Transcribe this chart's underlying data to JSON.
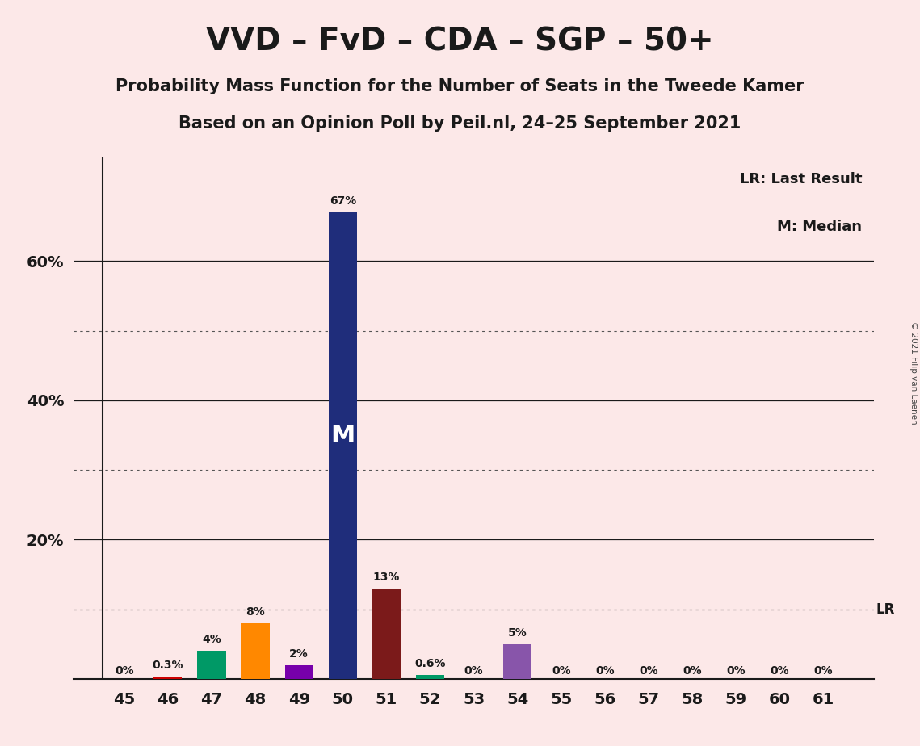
{
  "title": "VVD – FvD – CDA – SGP – 50+",
  "subtitle1": "Probability Mass Function for the Number of Seats in the Tweede Kamer",
  "subtitle2": "Based on an Opinion Poll by Peil.nl, 24–25 September 2021",
  "copyright": "© 2021 Filip van Laenen",
  "legend_lr": "LR: Last Result",
  "legend_m": "M: Median",
  "median_label": "M",
  "x_labels": [
    45,
    46,
    47,
    48,
    49,
    50,
    51,
    52,
    53,
    54,
    55,
    56,
    57,
    58,
    59,
    60,
    61
  ],
  "values": [
    0.0,
    0.3,
    4.0,
    8.0,
    2.0,
    67.0,
    13.0,
    0.6,
    0.0,
    5.0,
    0.0,
    0.0,
    0.0,
    0.0,
    0.0,
    0.0,
    0.0
  ],
  "bar_colors": [
    "#cc0000",
    "#cc0000",
    "#009966",
    "#ff8800",
    "#7700aa",
    "#1f2d7b",
    "#7b1a1a",
    "#009966",
    "#cc0000",
    "#8855aa",
    "#cccccc",
    "#cccccc",
    "#cccccc",
    "#cccccc",
    "#cccccc",
    "#cccccc",
    "#cccccc"
  ],
  "value_labels": [
    "0%",
    "0.3%",
    "4%",
    "8%",
    "2%",
    "67%",
    "13%",
    "0.6%",
    "0%",
    "5%",
    "0%",
    "0%",
    "0%",
    "0%",
    "0%",
    "0%",
    "0%"
  ],
  "background_color": "#fce8e8",
  "ylim": [
    0,
    75
  ],
  "lr_value": 10.0,
  "median_seat": 50,
  "solid_gridlines": [
    20,
    40,
    60
  ],
  "dotted_gridlines": [
    10,
    30,
    50
  ]
}
